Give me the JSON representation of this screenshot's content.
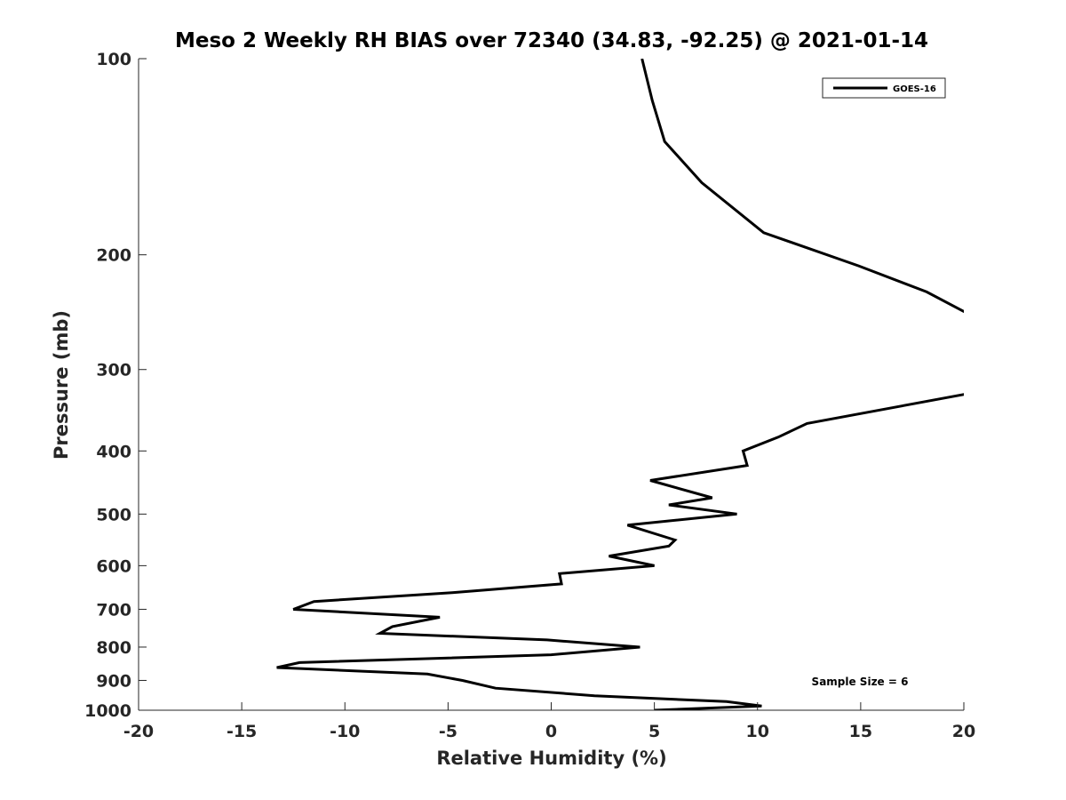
{
  "chart_data": {
    "type": "line",
    "title": "Meso 2 Weekly RH BIAS over 72340 (34.83, -92.25) @ 2021-01-14",
    "xlabel": "Relative Humidity (%)",
    "ylabel": "Pressure (mb)",
    "xlim": [
      -20,
      20
    ],
    "ylim": [
      100,
      1000
    ],
    "y_scale": "log",
    "y_reversed": true,
    "x_ticks": [
      -20,
      -15,
      -10,
      -5,
      0,
      5,
      10,
      15,
      20
    ],
    "y_ticks": [
      100,
      200,
      300,
      400,
      500,
      600,
      700,
      800,
      900,
      1000
    ],
    "grid": false,
    "legend_position": "top-right",
    "annotation": "Sample Size = 6",
    "series": [
      {
        "name": "GOES-16",
        "color": "#000000",
        "points": [
          {
            "x": 4.4,
            "p": 100
          },
          {
            "x": 4.9,
            "p": 116
          },
          {
            "x": 5.5,
            "p": 134
          },
          {
            "x": 7.3,
            "p": 155
          },
          {
            "x": 10.3,
            "p": 185
          },
          {
            "x": 14.9,
            "p": 208
          },
          {
            "x": 18.2,
            "p": 228
          },
          {
            "x": 20.6,
            "p": 250
          },
          {
            "x": 20.6,
            "p": 325
          },
          {
            "x": 12.4,
            "p": 363
          },
          {
            "x": 11.0,
            "p": 381
          },
          {
            "x": 9.3,
            "p": 400
          },
          {
            "x": 9.5,
            "p": 421
          },
          {
            "x": 4.8,
            "p": 444
          },
          {
            "x": 7.8,
            "p": 472
          },
          {
            "x": 5.7,
            "p": 484
          },
          {
            "x": 9.0,
            "p": 500
          },
          {
            "x": 3.7,
            "p": 520
          },
          {
            "x": 6.0,
            "p": 548
          },
          {
            "x": 5.7,
            "p": 560
          },
          {
            "x": 2.8,
            "p": 580
          },
          {
            "x": 5.0,
            "p": 600
          },
          {
            "x": 0.4,
            "p": 617
          },
          {
            "x": 0.5,
            "p": 640
          },
          {
            "x": -4.8,
            "p": 660
          },
          {
            "x": -11.5,
            "p": 681
          },
          {
            "x": -12.5,
            "p": 700
          },
          {
            "x": -5.4,
            "p": 720
          },
          {
            "x": -7.7,
            "p": 744
          },
          {
            "x": -8.3,
            "p": 762
          },
          {
            "x": -0.2,
            "p": 780
          },
          {
            "x": 4.3,
            "p": 800
          },
          {
            "x": 0.0,
            "p": 822
          },
          {
            "x": -12.2,
            "p": 845
          },
          {
            "x": -13.3,
            "p": 860
          },
          {
            "x": -6.0,
            "p": 880
          },
          {
            "x": -4.3,
            "p": 900
          },
          {
            "x": -2.7,
            "p": 925
          },
          {
            "x": 2.1,
            "p": 950
          },
          {
            "x": 8.5,
            "p": 970
          },
          {
            "x": 10.2,
            "p": 985
          },
          {
            "x": 5.0,
            "p": 1000
          }
        ]
      }
    ]
  }
}
